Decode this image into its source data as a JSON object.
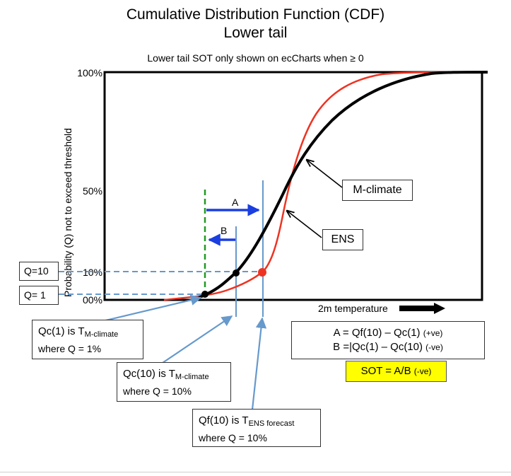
{
  "title_line1": "Cumulative Distribution Function (CDF)",
  "title_line2": "Lower tail",
  "subtitle": "Lower tail SOT only shown on ecCharts when  ≥ 0",
  "y_axis_title": "Probability (Q) not to exceed threshold",
  "y_ticks": [
    "100%",
    "50%",
    "10%",
    "00%"
  ],
  "q_boxes": [
    "Q=10",
    "Q= 1"
  ],
  "x_axis_label": "2m temperature",
  "curve_labels": {
    "mclimate": "M-climate",
    "ens": "ENS"
  },
  "arrow_labels": {
    "a": "A",
    "b": "B"
  },
  "qc1": {
    "main": "Qc(1) is T",
    "sub": "M-climate",
    "line2": "where Q = 1%"
  },
  "qc10": {
    "main": "Qc(10) is T",
    "sub": "M-climate",
    "line2": "where Q = 10%"
  },
  "qf10": {
    "main": "Qf(10) is T",
    "sub": "ENS forecast",
    "line2": "where Q = 10%"
  },
  "formula": {
    "a_main": "A = Qf(10) – Qc(1)",
    "a_note": "(+ve)",
    "b_main": "B =|Qc(1) – Qc(10)",
    "b_note": "(-ve)"
  },
  "sot": {
    "main": "SOT = A/B",
    "note": "(-ve)"
  },
  "colors": {
    "ens": "#ee3322",
    "mclimate": "#000000",
    "guide": "#6699cc",
    "arrow": "#1a3ee0",
    "green": "#229922",
    "sot_bg": "#ffff00"
  }
}
